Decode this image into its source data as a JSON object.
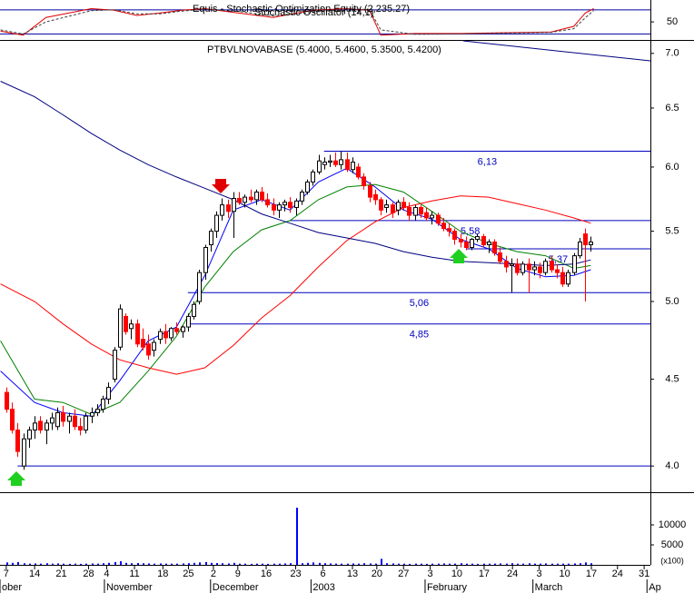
{
  "chart_data": [
    {
      "type": "line",
      "title": "Equis - Stochastic Optimization Equity (2,235.27)",
      "subtitle": "Stochastic Oscillator (14,1)",
      "xlim": [
        -1.1,
        113.5
      ],
      "ylim": [
        5,
        100
      ],
      "yticks": [
        50
      ],
      "reference_lines": [
        80,
        20
      ],
      "x": [
        -1,
        3,
        7,
        15,
        19,
        23,
        27,
        31,
        35,
        41,
        47,
        54,
        60,
        64,
        66,
        72,
        80,
        88,
        96,
        100,
        102,
        103.5
      ],
      "series": [
        {
          "color": "#e00000",
          "dash": false,
          "values": [
            27,
            17,
            61,
            83,
            79,
            66,
            72,
            79,
            83,
            72,
            61,
            79,
            83,
            79,
            17,
            21,
            21,
            23,
            25,
            39,
            72,
            83
          ]
        },
        {
          "color": "#404040",
          "dash": true,
          "values": [
            30,
            20,
            50,
            78,
            80,
            70,
            70,
            77,
            82,
            76,
            65,
            74,
            82,
            81,
            30,
            19,
            20,
            22,
            24,
            33,
            60,
            78
          ]
        }
      ]
    },
    {
      "type": "candlestick",
      "title": "PTBVLNOVABASE (5.4000, 5.4600, 5.3500, 5.4200)",
      "log": true,
      "xlim": [
        -1.1,
        113.5
      ],
      "ylim": [
        3.87,
        7.12
      ],
      "yticks": [
        {
          "value": 7.0,
          "label": "7.0"
        },
        {
          "value": 6.5,
          "label": "6.5"
        },
        {
          "value": 6.0,
          "label": "6.0"
        },
        {
          "value": 5.5,
          "label": "5.5"
        },
        {
          "value": 5.0,
          "label": "5.0"
        },
        {
          "value": 4.5,
          "label": "4.5"
        },
        {
          "value": 4.0,
          "label": "4.0"
        }
      ],
      "up_color": "#ffffff",
      "down_color": "#ff0000",
      "candles": [
        [
          4.42,
          4.45,
          4.3,
          4.32
        ],
        [
          4.32,
          4.36,
          4.18,
          4.2
        ],
        [
          4.2,
          4.24,
          4.05,
          4.08
        ],
        [
          4.0,
          4.18,
          3.98,
          4.15
        ],
        [
          4.15,
          4.22,
          4.1,
          4.2
        ],
        [
          4.2,
          4.28,
          4.15,
          4.24
        ],
        [
          4.25,
          4.28,
          4.18,
          4.2
        ],
        [
          4.2,
          4.26,
          4.12,
          4.24
        ],
        [
          4.24,
          4.3,
          4.2,
          4.27
        ],
        [
          4.22,
          4.33,
          4.2,
          4.3
        ],
        [
          4.3,
          4.34,
          4.22,
          4.25
        ],
        [
          4.25,
          4.3,
          4.18,
          4.28
        ],
        [
          4.28,
          4.32,
          4.2,
          4.22
        ],
        [
          4.22,
          4.27,
          4.17,
          4.2
        ],
        [
          4.2,
          4.3,
          4.18,
          4.28
        ],
        [
          4.28,
          4.33,
          4.24,
          4.3
        ],
        [
          4.3,
          4.35,
          4.28,
          4.32
        ],
        [
          4.32,
          4.4,
          4.3,
          4.38
        ],
        [
          4.38,
          4.48,
          4.35,
          4.45
        ],
        [
          4.5,
          4.7,
          4.48,
          4.68
        ],
        [
          4.7,
          4.98,
          4.68,
          4.95
        ],
        [
          4.9,
          4.92,
          4.78,
          4.8
        ],
        [
          4.82,
          4.88,
          4.75,
          4.85
        ],
        [
          4.85,
          4.88,
          4.7,
          4.72
        ],
        [
          4.75,
          4.82,
          4.68,
          4.7
        ],
        [
          4.72,
          4.78,
          4.62,
          4.65
        ],
        [
          4.68,
          4.75,
          4.64,
          4.73
        ],
        [
          4.75,
          4.82,
          4.72,
          4.8
        ],
        [
          4.8,
          4.85,
          4.72,
          4.76
        ],
        [
          4.76,
          4.83,
          4.74,
          4.82
        ],
        [
          4.82,
          4.86,
          4.78,
          4.8
        ],
        [
          4.8,
          4.84,
          4.76,
          4.83
        ],
        [
          4.83,
          4.92,
          4.8,
          4.9
        ],
        [
          4.9,
          5.0,
          4.88,
          4.98
        ],
        [
          5.0,
          5.22,
          4.98,
          5.2
        ],
        [
          5.2,
          5.4,
          5.15,
          5.38
        ],
        [
          5.4,
          5.52,
          5.35,
          5.5
        ],
        [
          5.5,
          5.65,
          5.45,
          5.62
        ],
        [
          5.62,
          5.75,
          5.58,
          5.7
        ],
        [
          5.7,
          5.74,
          5.6,
          5.65
        ],
        [
          5.65,
          5.8,
          5.45,
          5.75
        ],
        [
          5.75,
          5.8,
          5.7,
          5.72
        ],
        [
          5.72,
          5.78,
          5.68,
          5.76
        ],
        [
          5.76,
          5.82,
          5.72,
          5.74
        ],
        [
          5.74,
          5.82,
          5.7,
          5.8
        ],
        [
          5.8,
          5.84,
          5.72,
          5.74
        ],
        [
          5.74,
          5.79,
          5.68,
          5.7
        ],
        [
          5.7,
          5.75,
          5.62,
          5.66
        ],
        [
          5.66,
          5.72,
          5.6,
          5.7
        ],
        [
          5.7,
          5.74,
          5.65,
          5.72
        ],
        [
          5.72,
          5.76,
          5.64,
          5.68
        ],
        [
          5.68,
          5.75,
          5.62,
          5.73
        ],
        [
          5.73,
          5.82,
          5.7,
          5.8
        ],
        [
          5.8,
          5.9,
          5.78,
          5.88
        ],
        [
          5.88,
          5.98,
          5.85,
          5.96
        ],
        [
          5.96,
          6.1,
          5.94,
          6.05
        ],
        [
          6.02,
          6.08,
          5.98,
          6.04
        ],
        [
          6.04,
          6.1,
          6.0,
          6.05
        ],
        [
          6.05,
          6.12,
          6.0,
          6.02
        ],
        [
          6.02,
          6.13,
          5.98,
          6.06
        ],
        [
          6.06,
          6.12,
          5.96,
          5.98
        ],
        [
          5.98,
          6.08,
          5.95,
          6.04
        ],
        [
          6.0,
          6.03,
          5.9,
          5.92
        ],
        [
          5.92,
          5.95,
          5.82,
          5.85
        ],
        [
          5.85,
          5.88,
          5.72,
          5.76
        ],
        [
          5.78,
          5.82,
          5.7,
          5.74
        ],
        [
          5.74,
          5.76,
          5.62,
          5.66
        ],
        [
          5.68,
          5.74,
          5.64,
          5.7
        ],
        [
          5.7,
          5.72,
          5.6,
          5.64
        ],
        [
          5.66,
          5.74,
          5.62,
          5.72
        ],
        [
          5.72,
          5.76,
          5.66,
          5.68
        ],
        [
          5.68,
          5.72,
          5.58,
          5.62
        ],
        [
          5.62,
          5.7,
          5.58,
          5.68
        ],
        [
          5.68,
          5.7,
          5.6,
          5.63
        ],
        [
          5.64,
          5.68,
          5.58,
          5.6
        ],
        [
          5.6,
          5.65,
          5.55,
          5.62
        ],
        [
          5.62,
          5.64,
          5.54,
          5.56
        ],
        [
          5.56,
          5.6,
          5.5,
          5.52
        ],
        [
          5.52,
          5.56,
          5.46,
          5.5
        ],
        [
          5.5,
          5.52,
          5.4,
          5.44
        ],
        [
          5.44,
          5.48,
          5.38,
          5.42
        ],
        [
          5.42,
          5.46,
          5.36,
          5.38
        ],
        [
          5.38,
          5.45,
          5.36,
          5.44
        ],
        [
          5.44,
          5.48,
          5.42,
          5.46
        ],
        [
          5.46,
          5.48,
          5.38,
          5.4
        ],
        [
          5.4,
          5.44,
          5.34,
          5.42
        ],
        [
          5.42,
          5.44,
          5.32,
          5.34
        ],
        [
          5.34,
          5.38,
          5.26,
          5.28
        ],
        [
          5.28,
          5.32,
          5.2,
          5.24
        ],
        [
          5.25,
          5.3,
          5.06,
          5.26
        ],
        [
          5.26,
          5.3,
          5.18,
          5.2
        ],
        [
          5.2,
          5.28,
          5.18,
          5.26
        ],
        [
          5.26,
          5.3,
          5.06,
          5.22
        ],
        [
          5.22,
          5.28,
          5.18,
          5.24
        ],
        [
          5.24,
          5.27,
          5.16,
          5.2
        ],
        [
          5.2,
          5.3,
          5.18,
          5.28
        ],
        [
          5.28,
          5.32,
          5.2,
          5.22
        ],
        [
          5.22,
          5.26,
          5.16,
          5.2
        ],
        [
          5.2,
          5.24,
          5.1,
          5.12
        ],
        [
          5.12,
          5.22,
          5.1,
          5.2
        ],
        [
          5.2,
          5.34,
          5.18,
          5.32
        ],
        [
          5.32,
          5.45,
          5.3,
          5.42
        ],
        [
          5.48,
          5.52,
          5.0,
          5.4
        ],
        [
          5.4,
          5.46,
          5.35,
          5.42
        ]
      ],
      "x": [
        -1,
        5,
        10,
        15,
        20,
        25,
        30,
        35,
        40,
        45,
        50,
        55,
        60,
        65,
        70,
        75,
        80,
        85,
        90,
        95,
        100,
        103
      ],
      "series": [
        {
          "color": "#0000ff",
          "values": [
            4.55,
            4.36,
            4.3,
            4.28,
            4.49,
            4.74,
            4.83,
            5.18,
            5.66,
            5.74,
            5.66,
            5.88,
            5.99,
            5.84,
            5.66,
            5.59,
            5.44,
            5.37,
            5.23,
            5.17,
            5.18,
            5.22
          ]
        },
        {
          "color": "#008000",
          "values": [
            4.74,
            4.38,
            4.36,
            4.29,
            4.36,
            4.55,
            4.77,
            5.1,
            5.35,
            5.51,
            5.58,
            5.74,
            5.84,
            5.86,
            5.8,
            5.65,
            5.5,
            5.41,
            5.35,
            5.32,
            5.23,
            5.25
          ]
        },
        {
          "color": "#ff0000",
          "values": [
            5.12,
            5.0,
            4.85,
            4.72,
            4.62,
            4.57,
            4.53,
            4.57,
            4.71,
            4.89,
            5.04,
            5.24,
            5.43,
            5.57,
            5.68,
            5.73,
            5.77,
            5.76,
            5.71,
            5.66,
            5.6,
            5.56
          ]
        },
        {
          "color": "#000080",
          "values": [
            6.74,
            6.6,
            6.44,
            6.28,
            6.14,
            6.02,
            5.92,
            5.83,
            5.74,
            5.63,
            5.56,
            5.49,
            5.45,
            5.41,
            5.35,
            5.31,
            5.28,
            5.27,
            5.26,
            5.25,
            5.26,
            5.29
          ]
        }
      ],
      "levels": [
        {
          "value": 6.13,
          "label": "6,13",
          "start": 56
        },
        {
          "value": 5.58,
          "label": "5,58",
          "start": 50
        },
        {
          "value": 5.37,
          "label": "5,37",
          "start": 81
        },
        {
          "value": 5.06,
          "label": "5,06",
          "start": 32
        },
        {
          "value": 4.85,
          "label": "4,85",
          "start": 32
        },
        {
          "value": 4.0,
          "start": 2
        }
      ]
    },
    {
      "type": "bar",
      "color": "#0000ff",
      "xlim": [
        -1.1,
        113.5
      ],
      "ylim": [
        0,
        17500
      ],
      "yticks": [
        10000,
        5000
      ],
      "unit_label": "(x100)",
      "values": [
        600,
        500,
        700,
        400,
        300,
        350,
        300,
        400,
        300,
        350,
        300,
        250,
        300,
        250,
        300,
        350,
        300,
        400,
        500,
        700,
        900,
        500,
        400,
        450,
        400,
        350,
        300,
        350,
        300,
        300,
        300,
        350,
        400,
        500,
        600,
        700,
        500,
        450,
        400,
        350,
        500,
        300,
        300,
        250,
        300,
        300,
        250,
        300,
        300,
        350,
        400,
        14300,
        400,
        500,
        600,
        500,
        400,
        350,
        300,
        300,
        300,
        350,
        300,
        400,
        350,
        300,
        1500,
        400,
        350,
        300,
        300,
        250,
        300,
        300,
        250,
        300,
        300,
        350,
        300,
        300,
        400,
        300,
        300,
        250,
        300,
        300,
        300,
        350,
        300,
        400,
        300,
        300,
        400,
        300,
        300,
        350,
        300,
        300,
        300,
        300,
        350,
        400,
        600,
        400
      ],
      "xticks": [
        {
          "value": 0,
          "label": "7"
        },
        {
          "value": 5,
          "label": "14"
        },
        {
          "value": 9.7,
          "label": "21"
        },
        {
          "value": 14.5,
          "label": "28"
        },
        {
          "value": 17.7,
          "label": "4"
        },
        {
          "value": 22.6,
          "label": "11"
        },
        {
          "value": 27.6,
          "label": "18"
        },
        {
          "value": 32.1,
          "label": "25"
        },
        {
          "value": 36.5,
          "label": "2"
        },
        {
          "value": 40.8,
          "label": "9"
        },
        {
          "value": 45.8,
          "label": "16"
        },
        {
          "value": 51,
          "label": "23"
        },
        {
          "value": 55.8,
          "label": "6"
        },
        {
          "value": 61,
          "label": "13"
        },
        {
          "value": 65.3,
          "label": "20"
        },
        {
          "value": 70,
          "label": "27"
        },
        {
          "value": 74.7,
          "label": "3"
        },
        {
          "value": 79.4,
          "label": "10"
        },
        {
          "value": 84.2,
          "label": "17"
        },
        {
          "value": 89.2,
          "label": "24"
        },
        {
          "value": 93.9,
          "label": "3"
        },
        {
          "value": 98.4,
          "label": "10"
        },
        {
          "value": 103.1,
          "label": "17"
        },
        {
          "value": 107.7,
          "label": "24"
        },
        {
          "value": 112.4,
          "label": "31"
        }
      ],
      "months": [
        {
          "value": -1.1,
          "label": "ober"
        },
        {
          "value": 17.3,
          "label": "November"
        },
        {
          "value": 36,
          "label": "December"
        },
        {
          "value": 53.7,
          "label": "2003"
        },
        {
          "value": 73.8,
          "label": "February"
        },
        {
          "value": 92.8,
          "label": "March"
        },
        {
          "value": 112.9,
          "label": "Ap"
        }
      ]
    }
  ]
}
